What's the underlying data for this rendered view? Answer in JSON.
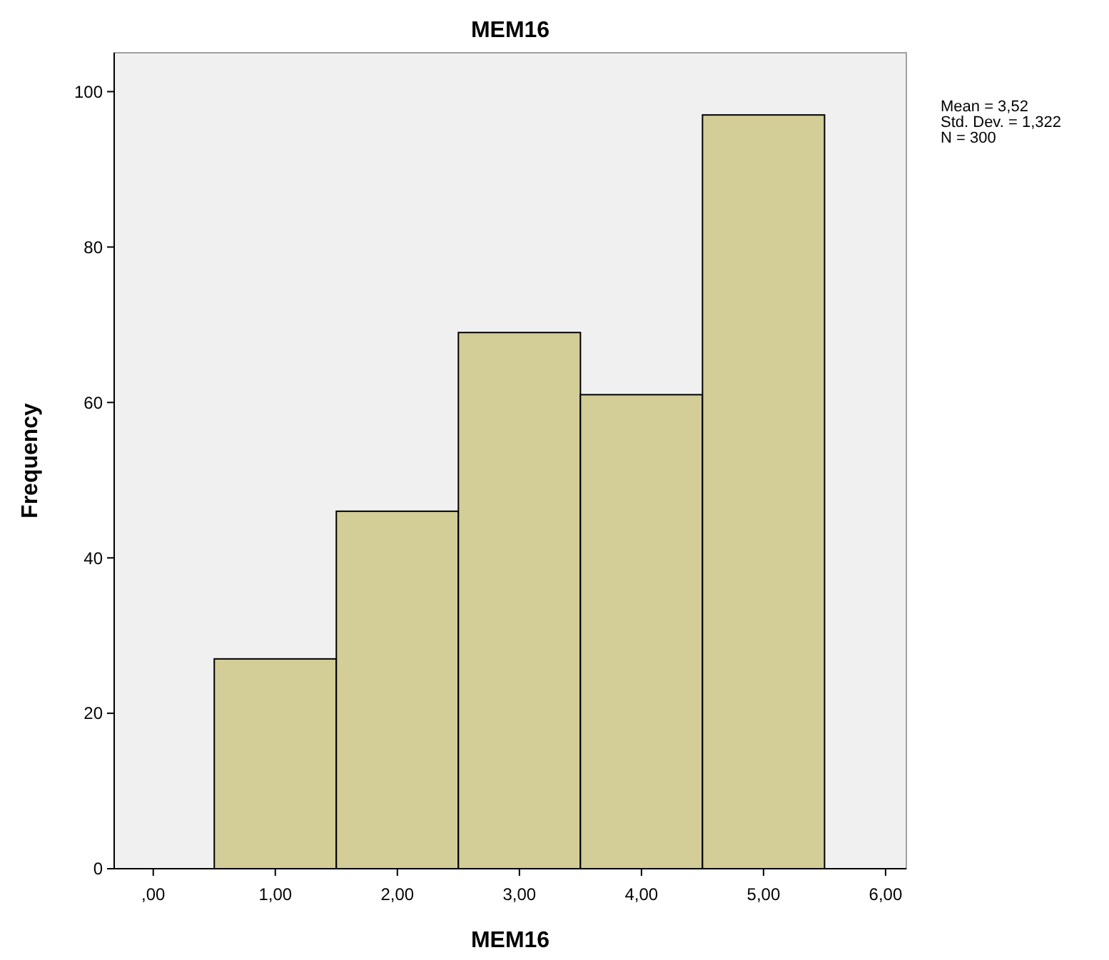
{
  "chart_data": {
    "type": "histogram",
    "title": "MEM16",
    "xlabel": "MEM16",
    "ylabel": "Frequency",
    "bins": [
      0.5,
      1.5,
      2.5,
      3.5,
      4.5,
      5.5
    ],
    "values": [
      27,
      46,
      69,
      61,
      97
    ],
    "color": "#d3ce97",
    "xlim": [
      -0.32,
      6.17
    ],
    "xticks": [
      {
        "value": 0,
        "label": ",00"
      },
      {
        "value": 1,
        "label": "1,00"
      },
      {
        "value": 2,
        "label": "2,00"
      },
      {
        "value": 3,
        "label": "3,00"
      },
      {
        "value": 4,
        "label": "4,00"
      },
      {
        "value": 5,
        "label": "5,00"
      },
      {
        "value": 6,
        "label": "6,00"
      }
    ],
    "ylim": [
      0,
      105
    ],
    "yticks": [
      0,
      20,
      40,
      60,
      80,
      100
    ],
    "grid": false,
    "annotations": [
      "Mean = 3,52",
      "Std. Dev. = 1,322",
      "N = 300"
    ]
  }
}
